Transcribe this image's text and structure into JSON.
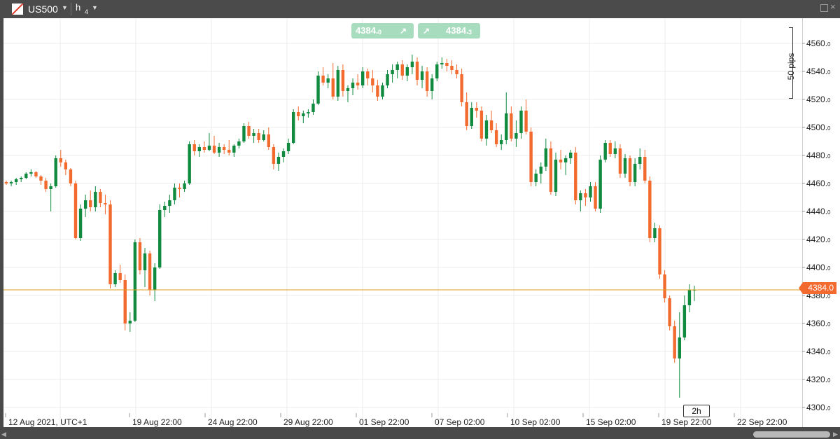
{
  "toolbar": {
    "symbol": "US500",
    "timeframe_label": "h",
    "timeframe_num": "4"
  },
  "quotes": {
    "sell": {
      "main": "4384.",
      "small": "0"
    },
    "buy": {
      "main": "4384.",
      "small": "3"
    }
  },
  "pips_label": "50 pips",
  "current_price_label": "4384.0",
  "time_tag": "2h",
  "colors": {
    "up": "#0f8a3e",
    "down": "#f26a2e",
    "price_line": "#e0a020"
  },
  "chart_data": {
    "type": "candlestick",
    "title": "",
    "symbol": "US500",
    "timeframe": "h4",
    "current_price": 4384.0,
    "ylim": [
      4300,
      4570
    ],
    "y_ticks": [
      4300,
      4320,
      4340,
      4360,
      4380,
      4400,
      4420,
      4440,
      4460,
      4480,
      4500,
      4520,
      4540,
      4560
    ],
    "y_tick_labels": [
      {
        "main": "4300.",
        "small": "0"
      },
      {
        "main": "4320.",
        "small": "0"
      },
      {
        "main": "4340.",
        "small": "0"
      },
      {
        "main": "4360.",
        "small": "0"
      },
      {
        "main": "4380.",
        "small": "0"
      },
      {
        "main": "4400.",
        "small": "0"
      },
      {
        "main": "4420.",
        "small": "0"
      },
      {
        "main": "4440.",
        "small": "0"
      },
      {
        "main": "4460.",
        "small": "0"
      },
      {
        "main": "4480.",
        "small": "0"
      },
      {
        "main": "4500.",
        "small": "0"
      },
      {
        "main": "4520.",
        "small": "0"
      },
      {
        "main": "4540.",
        "small": "0"
      },
      {
        "main": "4560.",
        "small": "0"
      }
    ],
    "x_tick_labels": [
      "12 Aug 2021, UTC+1",
      "19 Aug 22:00",
      "24 Aug 22:00",
      "29 Aug 22:00",
      "01 Sep 22:00",
      "07 Sep 02:00",
      "10 Sep 02:00",
      "15 Sep 02:00",
      "19 Sep 22:00",
      "22 Sep 22:00"
    ],
    "grid": true,
    "candles": [
      [
        4461,
        4462,
        4459,
        4460
      ],
      [
        4460,
        4462,
        4458,
        4461
      ],
      [
        4461,
        4464,
        4459,
        4463
      ],
      [
        4463,
        4465,
        4461,
        4464
      ],
      [
        4464,
        4468,
        4463,
        4467
      ],
      [
        4467,
        4470,
        4465,
        4468
      ],
      [
        4468,
        4469,
        4464,
        4465
      ],
      [
        4465,
        4466,
        4459,
        4462
      ],
      [
        4462,
        4464,
        4454,
        4456
      ],
      [
        4456,
        4460,
        4440,
        4458
      ],
      [
        4458,
        4480,
        4457,
        4478
      ],
      [
        4478,
        4484,
        4472,
        4475
      ],
      [
        4475,
        4477,
        4466,
        4470
      ],
      [
        4470,
        4471,
        4458,
        4460
      ],
      [
        4460,
        4462,
        4420,
        4421
      ],
      [
        4421,
        4445,
        4419,
        4442
      ],
      [
        4442,
        4452,
        4436,
        4448
      ],
      [
        4448,
        4455,
        4440,
        4443
      ],
      [
        4443,
        4458,
        4440,
        4454
      ],
      [
        4454,
        4456,
        4443,
        4446
      ],
      [
        4446,
        4452,
        4438,
        4445
      ],
      [
        4445,
        4448,
        4385,
        4388
      ],
      [
        4388,
        4398,
        4386,
        4396
      ],
      [
        4396,
        4402,
        4389,
        4391
      ],
      [
        4391,
        4395,
        4355,
        4360
      ],
      [
        4360,
        4368,
        4354,
        4362
      ],
      [
        4362,
        4420,
        4361,
        4418
      ],
      [
        4418,
        4421,
        4395,
        4398
      ],
      [
        4398,
        4414,
        4386,
        4410
      ],
      [
        4410,
        4412,
        4380,
        4384
      ],
      [
        4384,
        4403,
        4376,
        4400
      ],
      [
        4400,
        4445,
        4399,
        4441
      ],
      [
        4441,
        4447,
        4436,
        4444
      ],
      [
        4444,
        4452,
        4439,
        4448
      ],
      [
        4448,
        4460,
        4445,
        4457
      ],
      [
        4457,
        4460,
        4450,
        4456
      ],
      [
        4456,
        4462,
        4454,
        4460
      ],
      [
        4460,
        4490,
        4459,
        4488
      ],
      [
        4488,
        4491,
        4480,
        4483
      ],
      [
        4483,
        4488,
        4479,
        4486
      ],
      [
        4486,
        4490,
        4482,
        4484
      ],
      [
        4484,
        4496,
        4483,
        4487
      ],
      [
        4487,
        4494,
        4481,
        4482
      ],
      [
        4482,
        4489,
        4479,
        4486
      ],
      [
        4486,
        4488,
        4481,
        4484
      ],
      [
        4484,
        4491,
        4480,
        4482
      ],
      [
        4482,
        4488,
        4479,
        4487
      ],
      [
        4487,
        4492,
        4485,
        4490
      ],
      [
        4490,
        4503,
        4489,
        4501
      ],
      [
        4501,
        4504,
        4492,
        4494
      ],
      [
        4494,
        4499,
        4489,
        4496
      ],
      [
        4496,
        4499,
        4489,
        4491
      ],
      [
        4491,
        4498,
        4490,
        4495
      ],
      [
        4495,
        4500,
        4484,
        4486
      ],
      [
        4486,
        4488,
        4470,
        4474
      ],
      [
        4474,
        4482,
        4469,
        4479
      ],
      [
        4479,
        4485,
        4475,
        4483
      ],
      [
        4483,
        4492,
        4481,
        4489
      ],
      [
        4489,
        4513,
        4488,
        4511
      ],
      [
        4511,
        4515,
        4505,
        4508
      ],
      [
        4508,
        4512,
        4503,
        4510
      ],
      [
        4510,
        4513,
        4507,
        4511
      ],
      [
        4511,
        4520,
        4509,
        4517
      ],
      [
        4517,
        4540,
        4516,
        4537
      ],
      [
        4537,
        4543,
        4530,
        4532
      ],
      [
        4532,
        4538,
        4528,
        4535
      ],
      [
        4535,
        4546,
        4520,
        4522
      ],
      [
        4522,
        4544,
        4519,
        4541
      ],
      [
        4541,
        4545,
        4522,
        4526
      ],
      [
        4526,
        4530,
        4518,
        4528
      ],
      [
        4528,
        4535,
        4523,
        4532
      ],
      [
        4532,
        4538,
        4527,
        4530
      ],
      [
        4530,
        4543,
        4528,
        4540
      ],
      [
        4540,
        4542,
        4530,
        4535
      ],
      [
        4535,
        4541,
        4525,
        4530
      ],
      [
        4530,
        4534,
        4519,
        4522
      ],
      [
        4522,
        4532,
        4520,
        4530
      ],
      [
        4530,
        4541,
        4528,
        4538
      ],
      [
        4538,
        4545,
        4532,
        4541
      ],
      [
        4541,
        4547,
        4535,
        4545
      ],
      [
        4545,
        4548,
        4534,
        4537
      ],
      [
        4537,
        4545,
        4533,
        4543
      ],
      [
        4543,
        4552,
        4538,
        4547
      ],
      [
        4547,
        4550,
        4530,
        4534
      ],
      [
        4534,
        4544,
        4528,
        4540
      ],
      [
        4540,
        4543,
        4522,
        4526
      ],
      [
        4526,
        4538,
        4520,
        4535
      ],
      [
        4535,
        4547,
        4533,
        4545
      ],
      [
        4545,
        4550,
        4542,
        4546
      ],
      [
        4546,
        4549,
        4540,
        4544
      ],
      [
        4544,
        4548,
        4538,
        4541
      ],
      [
        4541,
        4545,
        4535,
        4538
      ],
      [
        4538,
        4542,
        4515,
        4518
      ],
      [
        4518,
        4525,
        4498,
        4501
      ],
      [
        4501,
        4518,
        4499,
        4514
      ],
      [
        4514,
        4518,
        4507,
        4512
      ],
      [
        4512,
        4515,
        4490,
        4492
      ],
      [
        4492,
        4509,
        4487,
        4505
      ],
      [
        4505,
        4512,
        4496,
        4498
      ],
      [
        4498,
        4503,
        4486,
        4488
      ],
      [
        4488,
        4495,
        4484,
        4491
      ],
      [
        4491,
        4525,
        4488,
        4510
      ],
      [
        4510,
        4515,
        4490,
        4492
      ],
      [
        4492,
        4505,
        4486,
        4496
      ],
      [
        4496,
        4515,
        4492,
        4512
      ],
      [
        4512,
        4520,
        4495,
        4497
      ],
      [
        4497,
        4500,
        4458,
        4461
      ],
      [
        4461,
        4470,
        4458,
        4467
      ],
      [
        4467,
        4475,
        4460,
        4472
      ],
      [
        4472,
        4492,
        4469,
        4485
      ],
      [
        4485,
        4490,
        4452,
        4454
      ],
      [
        4454,
        4482,
        4451,
        4477
      ],
      [
        4477,
        4484,
        4470,
        4475
      ],
      [
        4475,
        4480,
        4466,
        4478
      ],
      [
        4478,
        4484,
        4474,
        4482
      ],
      [
        4482,
        4486,
        4445,
        4448
      ],
      [
        4448,
        4455,
        4440,
        4453
      ],
      [
        4453,
        4456,
        4444,
        4450
      ],
      [
        4450,
        4461,
        4447,
        4458
      ],
      [
        4458,
        4461,
        4440,
        4442
      ],
      [
        4442,
        4480,
        4439,
        4477
      ],
      [
        4477,
        4491,
        4475,
        4489
      ],
      [
        4489,
        4491,
        4479,
        4481
      ],
      [
        4481,
        4490,
        4478,
        4485
      ],
      [
        4485,
        4488,
        4464,
        4467
      ],
      [
        4467,
        4481,
        4464,
        4478
      ],
      [
        4478,
        4480,
        4458,
        4461
      ],
      [
        4461,
        4478,
        4458,
        4474
      ],
      [
        4474,
        4485,
        4470,
        4479
      ],
      [
        4479,
        4484,
        4460,
        4462
      ],
      [
        4462,
        4465,
        4418,
        4421
      ],
      [
        4421,
        4432,
        4418,
        4428
      ],
      [
        4428,
        4430,
        4392,
        4395
      ],
      [
        4395,
        4398,
        4375,
        4378
      ],
      [
        4378,
        4380,
        4355,
        4358
      ],
      [
        4358,
        4362,
        4332,
        4335
      ],
      [
        4335,
        4368,
        4307,
        4350
      ],
      [
        4350,
        4380,
        4348,
        4373
      ],
      [
        4373,
        4388,
        4368,
        4384
      ],
      [
        4384,
        4387,
        4376,
        4384
      ]
    ]
  }
}
